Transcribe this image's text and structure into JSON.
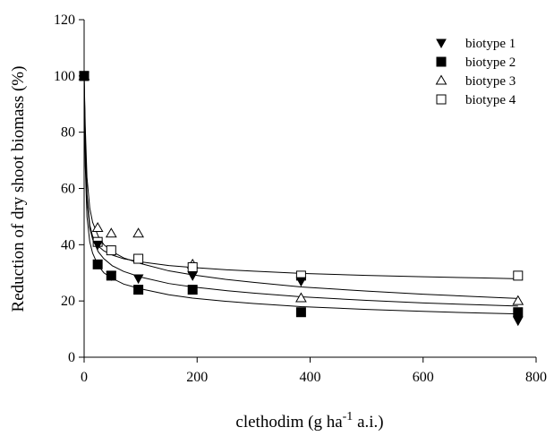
{
  "chart_data": {
    "type": "scatter",
    "title": "",
    "xlabel_main": "clethodim (g ha",
    "xlabel_sup": "-1",
    "xlabel_tail": " a.i.)",
    "ylabel": "Reduction of dry shoot biomass (%)",
    "xlim": [
      0,
      800
    ],
    "ylim": [
      0,
      120
    ],
    "x_ticks": [
      0,
      200,
      400,
      600,
      800
    ],
    "y_ticks": [
      0,
      20,
      40,
      60,
      80,
      100,
      120
    ],
    "grid": false,
    "legend_position": "top-right",
    "x_doses": [
      0,
      24,
      48,
      96,
      192,
      384,
      768
    ],
    "series": [
      {
        "name": "biotype 1",
        "marker": "triangle-down-filled",
        "values": [
          100,
          40,
          29,
          28,
          29,
          27,
          13
        ]
      },
      {
        "name": "biotype 2",
        "marker": "square-filled",
        "values": [
          100,
          33,
          29,
          24,
          24,
          16,
          16
        ]
      },
      {
        "name": "biotype 3",
        "marker": "triangle-up-open",
        "values": [
          100,
          46,
          44,
          44,
          33,
          21,
          20
        ]
      },
      {
        "name": "biotype 4",
        "marker": "square-open",
        "values": [
          100,
          41,
          38,
          35,
          32,
          29,
          29
        ]
      }
    ],
    "fitted_curves": [
      {
        "name": "biotype 1",
        "x": [
          0,
          2,
          5,
          10,
          15,
          25,
          35,
          50,
          70,
          100,
          150,
          192,
          250,
          300,
          384,
          500,
          600,
          700,
          768
        ],
        "y": [
          100,
          75,
          56,
          46,
          42,
          37.5,
          35,
          32.5,
          30.5,
          28.5,
          26.2,
          25,
          23.7,
          22.8,
          21.5,
          20.2,
          19.3,
          18.6,
          18.2
        ]
      },
      {
        "name": "biotype 2",
        "x": [
          0,
          2,
          5,
          10,
          15,
          25,
          35,
          50,
          70,
          100,
          150,
          192,
          250,
          300,
          384,
          500,
          600,
          700,
          768
        ],
        "y": [
          100,
          68,
          50,
          41,
          37,
          32.5,
          30,
          28,
          26,
          24.3,
          22.2,
          21,
          19.9,
          19.1,
          18,
          17,
          16.3,
          15.7,
          15.4
        ]
      },
      {
        "name": "biotype 3",
        "x": [
          0,
          2,
          5,
          10,
          15,
          25,
          35,
          50,
          70,
          100,
          150,
          192,
          250,
          300,
          384,
          500,
          600,
          700,
          768
        ],
        "y": [
          100,
          82,
          64,
          53,
          48,
          43,
          40,
          37.5,
          35.3,
          33.3,
          30.7,
          29.3,
          27.7,
          26.6,
          25,
          23.5,
          22.4,
          21.5,
          20.9
        ]
      },
      {
        "name": "biotype 4",
        "x": [
          0,
          2,
          5,
          10,
          15,
          25,
          35,
          50,
          70,
          100,
          150,
          192,
          250,
          300,
          384,
          500,
          600,
          700,
          768
        ],
        "y": [
          100,
          78,
          58,
          47,
          43,
          39.5,
          37.8,
          36.3,
          35,
          33.9,
          32.6,
          31.9,
          31.1,
          30.6,
          29.8,
          29.1,
          28.6,
          28.2,
          27.9
        ]
      }
    ]
  }
}
